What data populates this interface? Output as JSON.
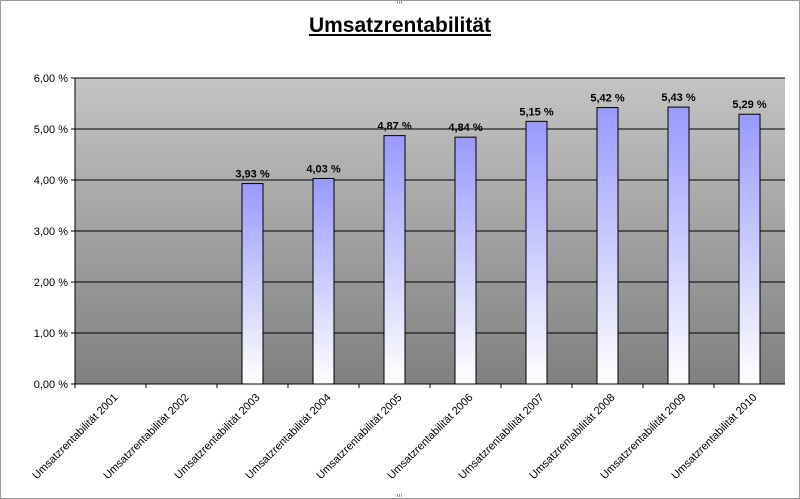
{
  "chart_data": {
    "type": "bar",
    "title": "Umsatzrentabilität",
    "categories": [
      "Umsatzrentabilität 2001",
      "Umsatzrentabilität 2002",
      "Umsatzrentabilität 2003",
      "Umsatzrentabilität 2004",
      "Umsatzrentabilität 2005",
      "Umsatzrentabilität 2006",
      "Umsatzrentabilität 2007",
      "Umsatzrentabilität 2008",
      "Umsatzrentabilität 2009",
      "Umsatzrentabilität 2010"
    ],
    "values": [
      null,
      null,
      3.93,
      4.03,
      4.87,
      4.84,
      5.15,
      5.42,
      5.43,
      5.29
    ],
    "data_labels": [
      "",
      "",
      "3,93 %",
      "4,03 %",
      "4,87 %",
      "4,84 %",
      "5,15 %",
      "5,42 %",
      "5,43 %",
      "5,29 %"
    ],
    "y_ticks": [
      0,
      1,
      2,
      3,
      4,
      5,
      6
    ],
    "y_tick_labels": [
      "0,00 %",
      "1,00 %",
      "2,00 %",
      "3,00 %",
      "4,00 %",
      "5,00 %",
      "6,00 %"
    ],
    "ylim": [
      0,
      6
    ],
    "xlabel": "",
    "ylabel": "",
    "grid": true,
    "legend": "none",
    "colors": {
      "bar_top": "#9999ff",
      "bar_bottom": "#ffffff",
      "bar_stroke": "#000000",
      "plot_top": "#c4c4c4",
      "plot_bottom": "#808080",
      "gridline": "#000000"
    }
  }
}
